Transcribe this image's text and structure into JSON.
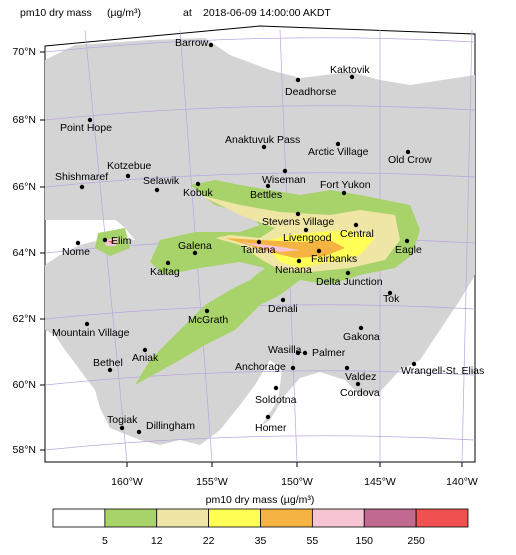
{
  "header": {
    "variable": "pm10 dry mass",
    "unit": "(µg/m³)",
    "at": "at",
    "time": "2018-06-09 14:00:00 AKDT"
  },
  "lat_labels": [
    "70°N",
    "68°N",
    "66°N",
    "64°N",
    "62°N",
    "60°N",
    "58°N"
  ],
  "lon_labels": [
    "160°W",
    "155°W",
    "150°W",
    "145°W",
    "140°W"
  ],
  "places": [
    "Barrow",
    "Kaktovik",
    "Deadhorse",
    "Point Hope",
    "Anaktuvuk Pass",
    "Arctic Village",
    "Old Crow",
    "Kotzebue",
    "Shishmaref",
    "Selawik",
    "Wiseman",
    "Kobuk",
    "Bettles",
    "Fort Yukon",
    "Stevens Village",
    "Central",
    "Livengood",
    "Elim",
    "Galena",
    "Tanana",
    "Eagle",
    "Nome",
    "Fairbanks",
    "Nenana",
    "Kaltag",
    "Delta Junction",
    "Denali",
    "Tok",
    "McGrath",
    "Mountain Village",
    "Gakona",
    "Wasilla",
    "Palmer",
    "Aniak",
    "Anchorage",
    "Wrangell-St. Elias",
    "Bethel",
    "Valdez",
    "Soldotna",
    "Cordova",
    "Togiak",
    "Dillingham",
    "Homer"
  ],
  "legend": {
    "title": "pm10 dry mass  (µg/m³)",
    "ticks": [
      5,
      12,
      22,
      35,
      55,
      150,
      250
    ],
    "colors": [
      "#ffffff",
      "#a8d36a",
      "#efe6a6",
      "#ffff55",
      "#f5b342",
      "#f7c6d2",
      "#c06a8f",
      "#f0504f"
    ]
  }
}
